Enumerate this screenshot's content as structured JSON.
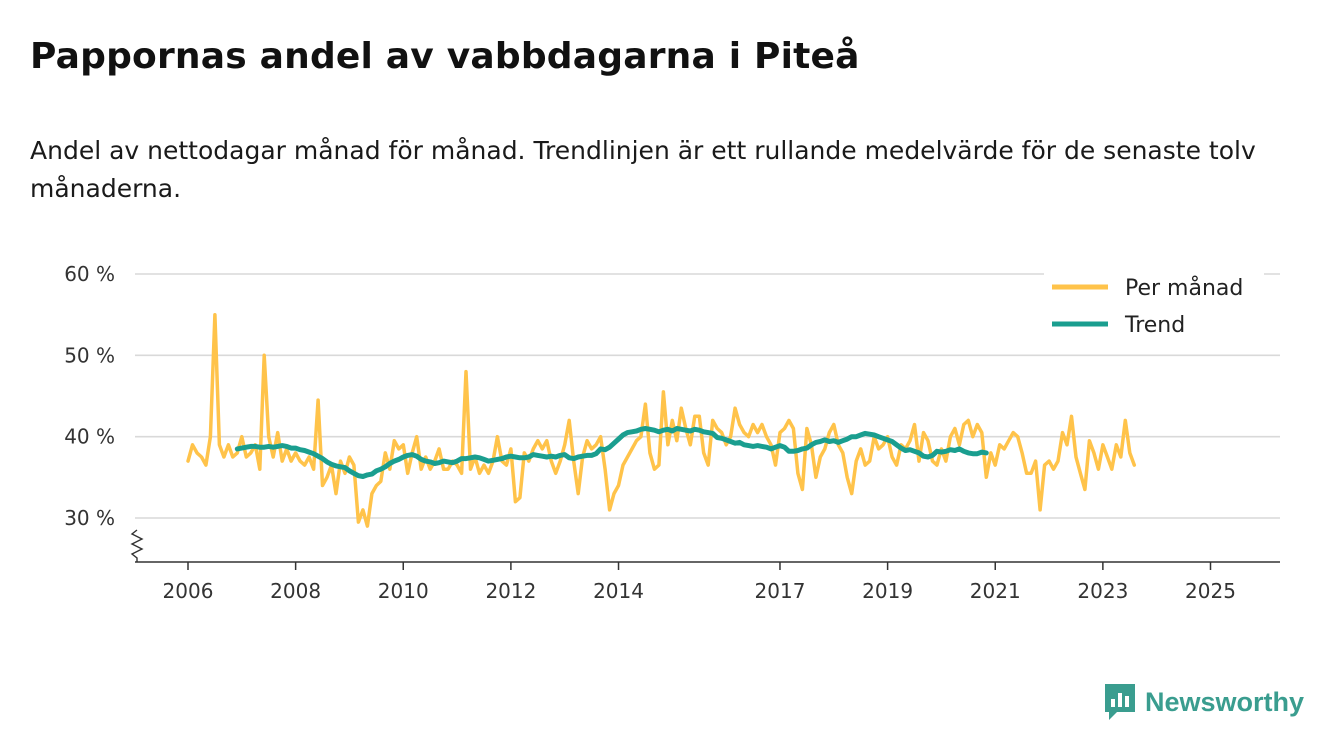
{
  "title": "Pappornas andel av vabbdagarna i Piteå",
  "subtitle": "Andel av nettodagar månad för månad. Trendlinjen är ett rullande medelvärde för de senaste tolv månaderna.",
  "brand": "Newsworthy",
  "colors": {
    "monthly": "#FFC34A",
    "trend": "#1A9E8F",
    "grid": "#d9d9d9",
    "axis": "#333333",
    "brand": "#3a9d8f"
  },
  "chart_data": {
    "type": "line",
    "title": "Pappornas andel av vabbdagarna i Piteå",
    "ylabel": "",
    "xlabel": "",
    "ylim": [
      25,
      60
    ],
    "y_ticks": [
      30,
      40,
      50,
      60
    ],
    "y_tick_labels": [
      "30 %",
      "40 %",
      "50 %",
      "60 %"
    ],
    "x_ticks": [
      2006,
      2008,
      2010,
      2012,
      2014,
      2017,
      2019,
      2021,
      2023,
      2025
    ],
    "x_tick_labels": [
      "2006",
      "2008",
      "2010",
      "2012",
      "2014",
      "2017",
      "2019",
      "2021",
      "2023",
      "2025"
    ],
    "x_start": 2006,
    "axis_break": true,
    "legend": {
      "position": "top-right",
      "entries": [
        "Per månad",
        "Trend"
      ]
    },
    "series": [
      {
        "name": "Per månad",
        "start_index": 0,
        "values": [
          37,
          39,
          38,
          37.5,
          36.5,
          40,
          55,
          39,
          37.5,
          39,
          37.5,
          38,
          40,
          37.5,
          38,
          39,
          36,
          50,
          40,
          37.5,
          40.5,
          37,
          38.5,
          37,
          38,
          37,
          36.5,
          37.5,
          36,
          44.5,
          34,
          35,
          36.5,
          33,
          37,
          35.5,
          37.5,
          36.5,
          29.5,
          31,
          29,
          33,
          34,
          34.5,
          38,
          36,
          39.5,
          38.5,
          39,
          35.5,
          38,
          40,
          36,
          37.5,
          36,
          37,
          38.5,
          36,
          36,
          37,
          36.5,
          35.5,
          48,
          36,
          37.5,
          35.5,
          36.5,
          35.5,
          37,
          40,
          37,
          36.5,
          38.5,
          32,
          32.5,
          38,
          37,
          38.5,
          39.5,
          38.5,
          39.5,
          37,
          35.5,
          37,
          39,
          42,
          37,
          33,
          37.5,
          39.5,
          38.5,
          39,
          40,
          36,
          31,
          33,
          34,
          36.5,
          37.5,
          38.5,
          39.5,
          40,
          44,
          38,
          36,
          36.5,
          45.5,
          39,
          42,
          39.5,
          43.5,
          41,
          39,
          42.5,
          42.5,
          38,
          36.5,
          42,
          41,
          40.5,
          39,
          40,
          43.5,
          41.5,
          40.5,
          40,
          41.5,
          40.5,
          41.5,
          40,
          39,
          36.5,
          40.5,
          41,
          42,
          41,
          35.5,
          33.5,
          41,
          39,
          35,
          37.5,
          38.5,
          40.5,
          41.5,
          39,
          38,
          35,
          33,
          37,
          38.5,
          36.5,
          37,
          40,
          38.5,
          39,
          40,
          37.5,
          36.5,
          39,
          38.5,
          39.5,
          41.5,
          37,
          40.5,
          39.5,
          37,
          36.5,
          38.5,
          37,
          40,
          41,
          39,
          41.5,
          42,
          40,
          41.5,
          40.5,
          35,
          38,
          36.5,
          39,
          38.5,
          39.5,
          40.5,
          40,
          38,
          35.5,
          35.5,
          37,
          31,
          36.5,
          37,
          36,
          37,
          40.5,
          39,
          42.5,
          37.5,
          35.5,
          33.5,
          39.5,
          38,
          36,
          39,
          37.5,
          36,
          39,
          37.5,
          42,
          38,
          36.5
        ]
      },
      {
        "name": "Trend",
        "start_index": 11,
        "values": [
          38.5,
          38.6,
          38.7,
          38.8,
          38.8,
          38.7,
          38.7,
          38.8,
          38.7,
          38.8,
          38.9,
          38.8,
          38.6,
          38.6,
          38.4,
          38.3,
          38.1,
          37.9,
          37.6,
          37.3,
          36.9,
          36.6,
          36.4,
          36.3,
          36.2,
          35.8,
          35.5,
          35.2,
          35.1,
          35.3,
          35.4,
          35.8,
          36.0,
          36.3,
          36.7,
          37.0,
          37.2,
          37.5,
          37.7,
          37.8,
          37.6,
          37.2,
          37.0,
          36.9,
          36.7,
          36.8,
          37.0,
          36.9,
          36.8,
          37.0,
          37.3,
          37.3,
          37.4,
          37.5,
          37.4,
          37.2,
          37.0,
          37.1,
          37.2,
          37.3,
          37.5,
          37.6,
          37.5,
          37.4,
          37.4,
          37.5,
          37.8,
          37.7,
          37.6,
          37.5,
          37.6,
          37.5,
          37.7,
          37.8,
          37.4,
          37.3,
          37.5,
          37.6,
          37.7,
          37.7,
          37.9,
          38.5,
          38.4,
          38.7,
          39.2,
          39.7,
          40.2,
          40.5,
          40.6,
          40.7,
          40.9,
          41.0,
          40.9,
          40.8,
          40.6,
          40.8,
          40.9,
          40.7,
          41.0,
          40.9,
          40.8,
          40.7,
          40.9,
          40.8,
          40.6,
          40.5,
          40.4,
          39.9,
          39.8,
          39.6,
          39.4,
          39.2,
          39.3,
          39.0,
          38.9,
          38.8,
          38.9,
          38.8,
          38.7,
          38.5,
          38.7,
          38.9,
          38.7,
          38.2,
          38.2,
          38.3,
          38.5,
          38.6,
          39.0,
          39.3,
          39.4,
          39.6,
          39.4,
          39.5,
          39.3,
          39.5,
          39.7,
          40.0,
          40.0,
          40.2,
          40.4,
          40.3,
          40.2,
          40.0,
          39.8,
          39.6,
          39.4,
          39.0,
          38.6,
          38.3,
          38.4,
          38.2,
          38.0,
          37.6,
          37.5,
          37.7,
          38.2,
          38.1,
          38.2,
          38.4,
          38.3,
          38.5,
          38.2,
          38.0,
          37.9,
          37.9,
          38.1,
          38.0
        ]
      }
    ]
  }
}
